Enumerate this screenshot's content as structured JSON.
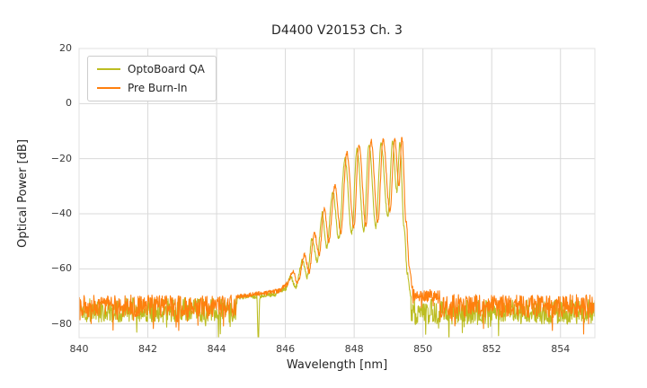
{
  "chart_data": {
    "type": "line",
    "title": "D4400 V20153 Ch. 3",
    "xlabel": "Wavelength [nm]",
    "ylabel": "Optical Power [dB]",
    "xlim": [
      840,
      855
    ],
    "ylim": [
      -85,
      20
    ],
    "xticks": [
      840,
      842,
      844,
      846,
      848,
      850,
      852,
      854
    ],
    "yticks": [
      20,
      0,
      -20,
      -40,
      -60,
      -80
    ],
    "grid": true,
    "grid_color": "#d9d9d9",
    "border_color": "#e0e0e0",
    "legend_position": "upper-left",
    "series": [
      {
        "name": "OptoBoard QA",
        "color": "#bcbd22",
        "segments": [
          {
            "type": "noise",
            "x0": 840.0,
            "x1": 844.6,
            "mean": -75.0,
            "amp": 4.5,
            "spike_p": 0.05,
            "spike_extra": 8
          },
          {
            "type": "curve",
            "amp": 0.8,
            "keypoints": [
              [
                844.6,
                -70.5
              ],
              [
                845.0,
                -70
              ],
              [
                845.17,
                -70
              ],
              [
                845.21,
                -86
              ],
              [
                845.26,
                -70
              ],
              [
                845.6,
                -69.5
              ],
              [
                846.0,
                -67.5
              ],
              [
                846.15,
                -63
              ],
              [
                846.3,
                -66.5
              ],
              [
                846.5,
                -57
              ],
              [
                846.63,
                -63
              ],
              [
                846.78,
                -49
              ],
              [
                846.92,
                -57
              ],
              [
                847.07,
                -40
              ],
              [
                847.2,
                -52
              ],
              [
                847.38,
                -32
              ],
              [
                847.55,
                -49
              ],
              [
                847.73,
                -20
              ],
              [
                847.93,
                -47
              ],
              [
                848.08,
                -16.5
              ],
              [
                848.28,
                -46
              ],
              [
                848.43,
                -15
              ],
              [
                848.63,
                -45
              ],
              [
                848.78,
                -14.5
              ],
              [
                848.98,
                -41
              ],
              [
                849.12,
                -14
              ],
              [
                849.24,
                -32
              ],
              [
                849.33,
                -14
              ],
              [
                849.45,
                -45
              ],
              [
                849.55,
                -62
              ],
              [
                849.65,
                -70
              ]
            ]
          },
          {
            "type": "noise",
            "x0": 849.65,
            "x1": 855.0,
            "mean": -75.5,
            "amp": 4.5,
            "spike_p": 0.06,
            "spike_extra": 8
          }
        ]
      },
      {
        "name": "Pre Burn-In",
        "color": "#ff7f0e",
        "segments": [
          {
            "type": "noise",
            "x0": 840.0,
            "x1": 844.6,
            "mean": -73.5,
            "amp": 4.0,
            "spike_p": 0.04,
            "spike_extra": 7
          },
          {
            "type": "curve",
            "amp": 0.8,
            "keypoints": [
              [
                844.6,
                -70
              ],
              [
                845.3,
                -69
              ],
              [
                845.8,
                -68
              ],
              [
                846.06,
                -65.5
              ],
              [
                846.21,
                -61
              ],
              [
                846.36,
                -65
              ],
              [
                846.56,
                -55
              ],
              [
                846.69,
                -61
              ],
              [
                846.84,
                -47
              ],
              [
                846.98,
                -55
              ],
              [
                847.13,
                -38
              ],
              [
                847.26,
                -50
              ],
              [
                847.44,
                -30
              ],
              [
                847.61,
                -47
              ],
              [
                847.79,
                -18
              ],
              [
                847.99,
                -45
              ],
              [
                848.14,
                -15
              ],
              [
                848.34,
                -44
              ],
              [
                848.49,
                -13.5
              ],
              [
                848.69,
                -43
              ],
              [
                848.84,
                -13
              ],
              [
                849.04,
                -39
              ],
              [
                849.18,
                -13
              ],
              [
                849.3,
                -30
              ],
              [
                849.39,
                -12.5
              ],
              [
                849.51,
                -43
              ],
              [
                849.61,
                -60
              ],
              [
                849.7,
                -67
              ]
            ]
          },
          {
            "type": "noise",
            "x0": 849.7,
            "x1": 850.5,
            "mean": -70.0,
            "amp": 2.5,
            "spike_p": 0.03,
            "spike_extra": 6
          },
          {
            "type": "noise",
            "x0": 850.5,
            "x1": 855.0,
            "mean": -73.5,
            "amp": 4.2,
            "spike_p": 0.05,
            "spike_extra": 7
          }
        ]
      }
    ]
  }
}
